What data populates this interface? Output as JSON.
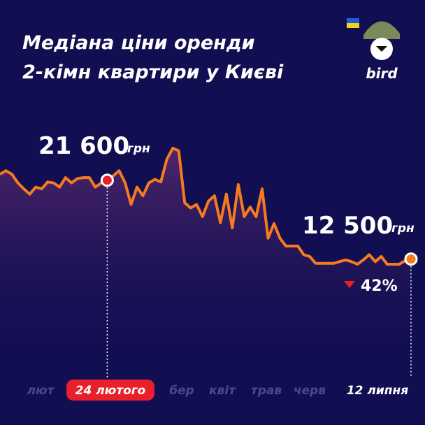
{
  "chart_data": {
    "type": "line",
    "title": [
      "Медіана ціни оренди",
      "2-кімн квартири у Києві"
    ],
    "logo": "bird",
    "color": "#f47b20",
    "values": [
      22300,
      22700,
      22300,
      21300,
      20600,
      20000,
      20800,
      20600,
      21400,
      21300,
      20800,
      21900,
      21300,
      21800,
      21900,
      21900,
      20800,
      21300,
      21600,
      22100,
      22700,
      21300,
      18800,
      20800,
      19800,
      21300,
      21700,
      21400,
      24000,
      25300,
      25000,
      19000,
      18400,
      18800,
      17400,
      19200,
      19800,
      16700,
      20000,
      16100,
      21100,
      17400,
      18500,
      17400,
      20600,
      14900,
      16600,
      14900,
      14000,
      14000,
      14000,
      13000,
      12800,
      12000,
      12000,
      12000,
      12000,
      12200,
      12400,
      12200,
      11900,
      12400,
      13000,
      12200,
      12800,
      11900,
      11900,
      11900,
      12300,
      12500
    ],
    "annotations": [
      {
        "value": 21600,
        "label": "21 600",
        "unit": "грн"
      },
      {
        "value": 12500,
        "label": "12 500",
        "unit": "грн"
      }
    ],
    "change": {
      "value": 42,
      "label": "42%",
      "direction": "down"
    },
    "x_labels": [
      "лют",
      "24 лютого",
      "бер",
      "квіт",
      "трав",
      "черв",
      "12 липня"
    ]
  }
}
